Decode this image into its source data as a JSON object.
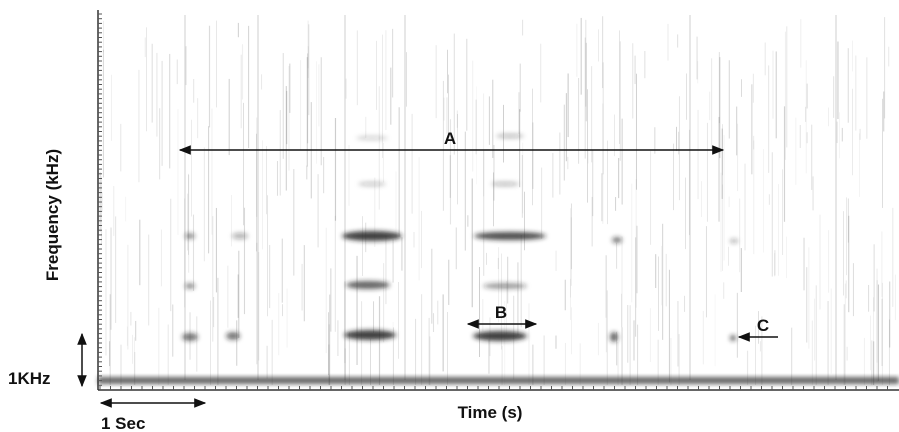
{
  "y_axis_label": "Frequency (kHz)",
  "x_axis_label": "Time (s)",
  "scale_bars": {
    "frequency": "1KHz",
    "time": "1 Sec"
  },
  "annotations": [
    {
      "label": "A"
    },
    {
      "label": "B"
    },
    {
      "label": "C"
    }
  ]
}
